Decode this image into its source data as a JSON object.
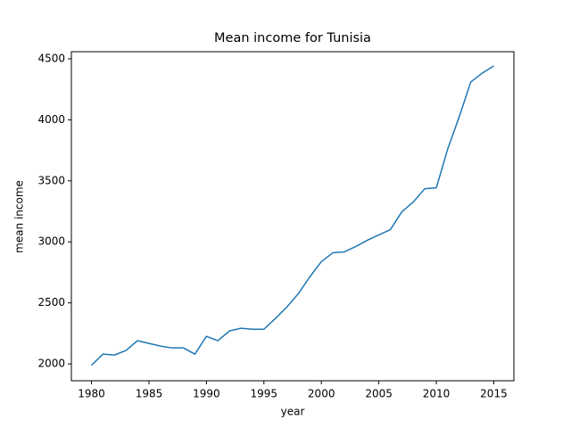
{
  "chart_data": {
    "type": "line",
    "title": "Mean income for Tunisia",
    "x_label": "year",
    "y_label": "mean income",
    "x": [
      1980,
      1981,
      1982,
      1983,
      1984,
      1985,
      1986,
      1987,
      1988,
      1989,
      1990,
      1991,
      1992,
      1993,
      1994,
      1995,
      1996,
      1997,
      1998,
      1999,
      2000,
      2001,
      2002,
      2003,
      2004,
      2005,
      2006,
      2007,
      2008,
      2009,
      2010,
      2011,
      2012,
      2013,
      2014,
      2015
    ],
    "series": [
      {
        "name": "mean income",
        "color": "#1f77b4",
        "values": [
          1990,
          2080,
          2073,
          2110,
          2190,
          2168,
          2146,
          2131,
          2131,
          2080,
          2226,
          2190,
          2270,
          2292,
          2284,
          2284,
          2372,
          2466,
          2576,
          2714,
          2838,
          2911,
          2918,
          2962,
          3013,
          3057,
          3100,
          3246,
          3327,
          3436,
          3443,
          3764,
          4026,
          4310,
          4383,
          4442
        ]
      }
    ],
    "xlim": [
      1978.25,
      2016.75
    ],
    "xticks": [
      1980,
      1985,
      1990,
      1995,
      2000,
      2005,
      2010,
      2015
    ],
    "ylim": [
      1862,
      4558
    ],
    "yticks": [
      2000,
      2500,
      3000,
      3500,
      4000,
      4500
    ],
    "grid": false
  }
}
